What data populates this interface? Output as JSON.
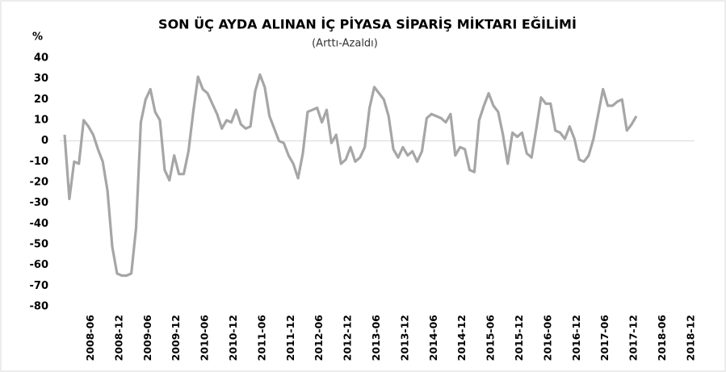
{
  "chart_data": {
    "type": "line",
    "title": "SON ÜÇ AYDA ALINAN İÇ PİYASA SİPARİŞ MİKTARI EĞİLİMİ",
    "subtitle": "(Arttı-Azaldı)",
    "y_label": "%",
    "categories": [
      null,
      null,
      null,
      null,
      null,
      "2008-06",
      null,
      null,
      null,
      null,
      null,
      "2008-12",
      null,
      null,
      null,
      null,
      null,
      "2009-06",
      null,
      null,
      null,
      null,
      null,
      "2009-12",
      null,
      null,
      null,
      null,
      null,
      "2010-06",
      null,
      null,
      null,
      null,
      null,
      "2010-12",
      null,
      null,
      null,
      null,
      null,
      "2011-06",
      null,
      null,
      null,
      null,
      null,
      "2011-12",
      null,
      null,
      null,
      null,
      null,
      "2012-06",
      null,
      null,
      null,
      null,
      null,
      "2012-12",
      null,
      null,
      null,
      null,
      null,
      "2013-06",
      null,
      null,
      null,
      null,
      null,
      "2013-12",
      null,
      null,
      null,
      null,
      null,
      "2014-06",
      null,
      null,
      null,
      null,
      null,
      "2014-12",
      null,
      null,
      null,
      null,
      null,
      "2015-06",
      null,
      null,
      null,
      null,
      null,
      "2015-12",
      null,
      null,
      null,
      null,
      null,
      "2016-06",
      null,
      null,
      null,
      null,
      null,
      "2016-12",
      null,
      null,
      null,
      null,
      null,
      "2017-06",
      null,
      null,
      null,
      null,
      null,
      "2017-12",
      null,
      null,
      null,
      null,
      null,
      "2018-06",
      null,
      null,
      null,
      null,
      null,
      "2018-12"
    ],
    "values": [
      3,
      -28,
      -10,
      -11,
      10,
      7,
      3,
      -4,
      -10,
      -24,
      -51,
      -64,
      -65,
      -65,
      -64,
      -42,
      9,
      20,
      25,
      14,
      10,
      -14,
      -19,
      -7,
      -16,
      -16,
      -5,
      14,
      31,
      25,
      23,
      18,
      13,
      6,
      10,
      9,
      15,
      8,
      6,
      7,
      24,
      32,
      26,
      12,
      6,
      0,
      -1,
      -7,
      -11,
      -18,
      -6,
      14,
      15,
      16,
      9,
      15,
      -1,
      3,
      -11,
      -9,
      -3,
      -10,
      -8,
      -3,
      16,
      26,
      23,
      20,
      12,
      -4,
      -8,
      -3,
      -7,
      -5,
      -10,
      -5,
      11,
      13,
      12,
      11,
      9,
      13,
      -7,
      -3,
      -4,
      -14,
      -15,
      10,
      17,
      23,
      17,
      14,
      3,
      -11,
      4,
      2,
      4,
      -6,
      -8,
      6,
      21,
      18,
      18,
      5,
      4,
      1,
      7,
      1,
      -9,
      -10,
      -7,
      1,
      13,
      25,
      17,
      17,
      19,
      20,
      5,
      8,
      12,
      null,
      null,
      null,
      null,
      null,
      null,
      null,
      null,
      null,
      null,
      null
    ],
    "color": "#a6a6a6",
    "ylim": [
      -80,
      40
    ],
    "yticks": [
      -80,
      -70,
      -60,
      -50,
      -40,
      -30,
      -20,
      -10,
      0,
      10,
      20,
      30,
      40
    ]
  }
}
